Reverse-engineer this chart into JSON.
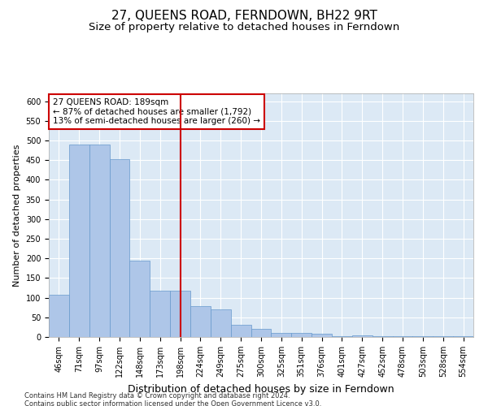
{
  "title": "27, QUEENS ROAD, FERNDOWN, BH22 9RT",
  "subtitle": "Size of property relative to detached houses in Ferndown",
  "xlabel": "Distribution of detached houses by size in Ferndown",
  "ylabel": "Number of detached properties",
  "categories": [
    "46sqm",
    "71sqm",
    "97sqm",
    "122sqm",
    "148sqm",
    "173sqm",
    "198sqm",
    "224sqm",
    "249sqm",
    "275sqm",
    "300sqm",
    "325sqm",
    "351sqm",
    "376sqm",
    "401sqm",
    "427sqm",
    "452sqm",
    "478sqm",
    "503sqm",
    "528sqm",
    "554sqm"
  ],
  "values": [
    107,
    490,
    490,
    453,
    195,
    117,
    117,
    78,
    70,
    30,
    20,
    10,
    10,
    8,
    3,
    5,
    3,
    3,
    3,
    3,
    3
  ],
  "bar_color": "#aec6e8",
  "bar_edge_color": "#6699cc",
  "vline_index": 6,
  "vline_color": "#cc0000",
  "annotation_text": "27 QUEENS ROAD: 189sqm\n← 87% of detached houses are smaller (1,792)\n13% of semi-detached houses are larger (260) →",
  "annotation_box_facecolor": "#ffffff",
  "annotation_box_edgecolor": "#cc0000",
  "ylim": [
    0,
    620
  ],
  "yticks": [
    0,
    50,
    100,
    150,
    200,
    250,
    300,
    350,
    400,
    450,
    500,
    550,
    600
  ],
  "background_color": "#dce9f5",
  "grid_color": "#ffffff",
  "footer1": "Contains HM Land Registry data © Crown copyright and database right 2024.",
  "footer2": "Contains public sector information licensed under the Open Government Licence v3.0.",
  "title_fontsize": 11,
  "subtitle_fontsize": 9.5,
  "tick_fontsize": 7,
  "ylabel_fontsize": 8,
  "xlabel_fontsize": 9,
  "annotation_fontsize": 7.5,
  "footer_fontsize": 6
}
